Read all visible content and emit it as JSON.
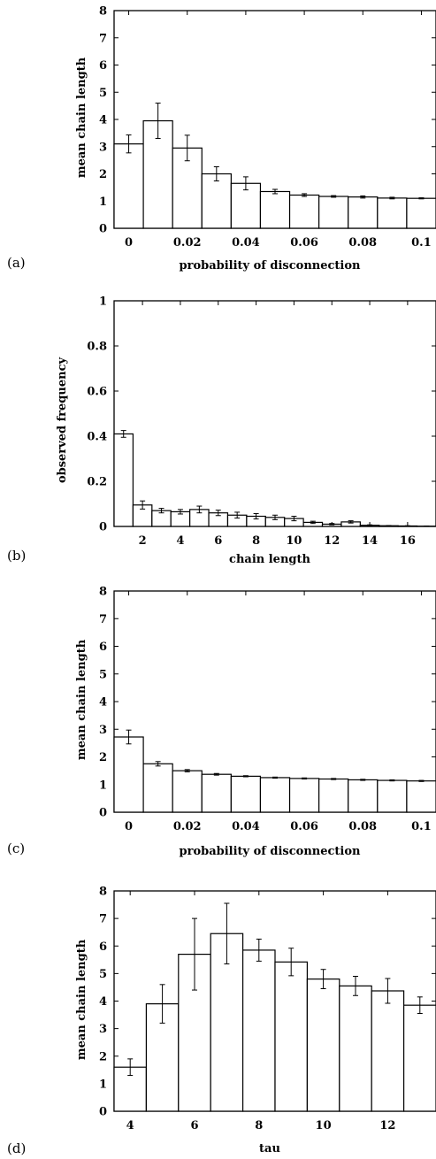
{
  "chart_data": [
    {
      "type": "bar",
      "panel_label": "(a)",
      "xlabel": "probability of disconnection",
      "ylabel": "mean chain length",
      "ylim": [
        0,
        8
      ],
      "yticks": [
        "0",
        "1",
        "2",
        "3",
        "4",
        "5",
        "6",
        "7",
        "8"
      ],
      "xticks": [
        "0",
        "0.02",
        "0.04",
        "0.06",
        "0.08",
        "0.1"
      ],
      "xlim": [
        -0.005,
        0.105
      ],
      "xtick_values": [
        0,
        0.02,
        0.04,
        0.06,
        0.08,
        0.1
      ],
      "bar_width": 0.01,
      "x": [
        0,
        0.01,
        0.02,
        0.03,
        0.04,
        0.05,
        0.06,
        0.07,
        0.08,
        0.09,
        0.1
      ],
      "values": [
        3.1,
        3.95,
        2.95,
        2.0,
        1.65,
        1.35,
        1.22,
        1.17,
        1.15,
        1.11,
        1.1
      ],
      "errors": [
        0.33,
        0.65,
        0.47,
        0.26,
        0.24,
        0.08,
        0.05,
        0.03,
        0.04,
        0.03,
        0.02
      ]
    },
    {
      "type": "bar",
      "panel_label": "(b)",
      "xlabel": "chain length",
      "ylabel": "observed frequency",
      "ylim": [
        0,
        1
      ],
      "yticks": [
        "0",
        "0.2",
        "0.4",
        "0.6",
        "0.8",
        "1"
      ],
      "xticks": [
        "2",
        "4",
        "6",
        "8",
        "10",
        "12",
        "14",
        "16"
      ],
      "xlim": [
        0.5,
        17.5
      ],
      "xtick_values": [
        2,
        4,
        6,
        8,
        10,
        12,
        14,
        16
      ],
      "bar_width": 1,
      "x": [
        1,
        2,
        3,
        4,
        5,
        6,
        7,
        8,
        9,
        10,
        11,
        12,
        13,
        14,
        15,
        16,
        17
      ],
      "values": [
        0.41,
        0.095,
        0.07,
        0.065,
        0.075,
        0.06,
        0.05,
        0.045,
        0.04,
        0.035,
        0.018,
        0.01,
        0.02,
        0.005,
        0.003,
        0.002,
        0.001
      ],
      "errors": [
        0.015,
        0.018,
        0.01,
        0.01,
        0.015,
        0.012,
        0.013,
        0.012,
        0.01,
        0.01,
        0.005,
        0.003,
        0.005,
        0.002,
        0.001,
        0.001,
        0.001
      ]
    },
    {
      "type": "bar",
      "panel_label": "(c)",
      "xlabel": "probability of disconnection",
      "ylabel": "mean chain length",
      "ylim": [
        0,
        8
      ],
      "yticks": [
        "0",
        "1",
        "2",
        "3",
        "4",
        "5",
        "6",
        "7",
        "8"
      ],
      "xticks": [
        "0",
        "0.02",
        "0.04",
        "0.06",
        "0.08",
        "0.1"
      ],
      "xlim": [
        -0.005,
        0.105
      ],
      "xtick_values": [
        0,
        0.02,
        0.04,
        0.06,
        0.08,
        0.1
      ],
      "bar_width": 0.01,
      "x": [
        0,
        0.01,
        0.02,
        0.03,
        0.04,
        0.05,
        0.06,
        0.07,
        0.08,
        0.09,
        0.1
      ],
      "values": [
        2.72,
        1.75,
        1.5,
        1.37,
        1.3,
        1.25,
        1.22,
        1.2,
        1.17,
        1.15,
        1.13
      ],
      "errors": [
        0.25,
        0.08,
        0.04,
        0.03,
        0.02,
        0.02,
        0.02,
        0.02,
        0.02,
        0.02,
        0.02
      ]
    },
    {
      "type": "bar",
      "panel_label": "(d)",
      "xlabel": "tau",
      "ylabel": "mean chain length",
      "ylim": [
        0,
        8
      ],
      "yticks": [
        "0",
        "1",
        "2",
        "3",
        "4",
        "5",
        "6",
        "7",
        "8"
      ],
      "xticks": [
        "4",
        "6",
        "8",
        "10",
        "12"
      ],
      "xlim": [
        3.5,
        13.5
      ],
      "xtick_values": [
        4,
        6,
        8,
        10,
        12
      ],
      "bar_width": 1,
      "x": [
        4,
        5,
        6,
        7,
        8,
        9,
        10,
        11,
        12,
        13
      ],
      "values": [
        1.6,
        3.9,
        5.7,
        6.45,
        5.85,
        5.42,
        4.8,
        4.55,
        4.37,
        3.85
      ],
      "errors": [
        0.3,
        0.7,
        1.3,
        1.1,
        0.4,
        0.5,
        0.35,
        0.35,
        0.45,
        0.3
      ]
    }
  ]
}
